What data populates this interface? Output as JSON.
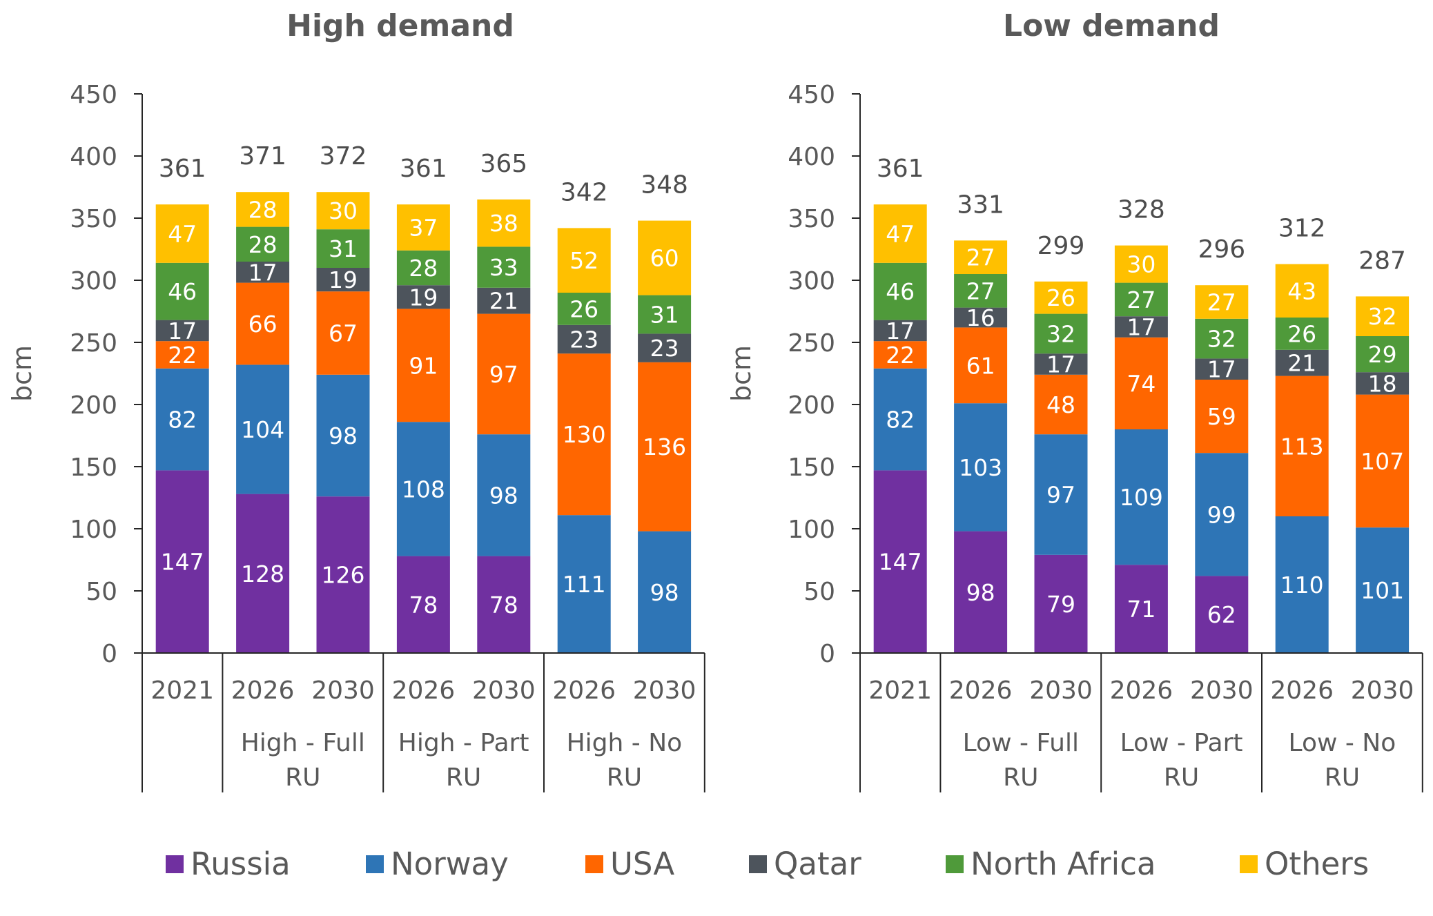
{
  "colors": {
    "Russia": "#7030a0",
    "Norway": "#2e75b6",
    "USA": "#ff6600",
    "Qatar": "#4d545c",
    "North Africa": "#4f9a3a",
    "Others": "#ffc000",
    "axis_text": "#595959",
    "label_dark": "#4d4d4d"
  },
  "legend": [
    "Russia",
    "Norway",
    "USA",
    "Qatar",
    "North Africa",
    "Others"
  ],
  "chart_data": [
    {
      "type": "bar",
      "stacked": true,
      "title": "High demand",
      "ylabel": "bcm",
      "ylim": [
        0,
        450
      ],
      "yticks": [
        "0",
        "50",
        "100",
        "150",
        "200",
        "250",
        "300",
        "350",
        "400",
        "450"
      ],
      "years": [
        "2021",
        "2026",
        "2030",
        "2026",
        "2030",
        "2026",
        "2030"
      ],
      "groups": [
        {
          "label": [],
          "span": 1
        },
        {
          "label": [
            "High - Full",
            "RU"
          ],
          "span": 2
        },
        {
          "label": [
            "High - Part",
            "RU"
          ],
          "span": 2
        },
        {
          "label": [
            "High - No",
            "RU"
          ],
          "span": 2
        }
      ],
      "totals": [
        361,
        371,
        372,
        361,
        365,
        342,
        348
      ],
      "series": [
        {
          "name": "Russia",
          "values": [
            147,
            128,
            126,
            78,
            78,
            0,
            0
          ]
        },
        {
          "name": "Norway",
          "values": [
            82,
            104,
            98,
            108,
            98,
            111,
            98
          ]
        },
        {
          "name": "USA",
          "values": [
            22,
            66,
            67,
            91,
            97,
            130,
            136
          ]
        },
        {
          "name": "Qatar",
          "values": [
            17,
            17,
            19,
            19,
            21,
            23,
            23
          ]
        },
        {
          "name": "North Africa",
          "values": [
            46,
            28,
            31,
            28,
            33,
            26,
            31
          ]
        },
        {
          "name": "Others",
          "values": [
            47,
            28,
            30,
            37,
            38,
            52,
            60
          ]
        }
      ]
    },
    {
      "type": "bar",
      "stacked": true,
      "title": "Low demand",
      "ylabel": "bcm",
      "ylim": [
        0,
        450
      ],
      "yticks": [
        "0",
        "50",
        "100",
        "150",
        "200",
        "250",
        "300",
        "350",
        "400",
        "450"
      ],
      "years": [
        "2021",
        "2026",
        "2030",
        "2026",
        "2030",
        "2026",
        "2030"
      ],
      "groups": [
        {
          "label": [],
          "span": 1
        },
        {
          "label": [
            "Low - Full",
            "RU"
          ],
          "span": 2
        },
        {
          "label": [
            "Low - Part",
            "RU"
          ],
          "span": 2
        },
        {
          "label": [
            "Low - No",
            "RU"
          ],
          "span": 2
        }
      ],
      "totals": [
        361,
        331,
        299,
        328,
        296,
        312,
        287
      ],
      "series": [
        {
          "name": "Russia",
          "values": [
            147,
            98,
            79,
            71,
            62,
            0,
            0
          ]
        },
        {
          "name": "Norway",
          "values": [
            82,
            103,
            97,
            109,
            99,
            110,
            101
          ]
        },
        {
          "name": "USA",
          "values": [
            22,
            61,
            48,
            74,
            59,
            113,
            107
          ]
        },
        {
          "name": "Qatar",
          "values": [
            17,
            16,
            17,
            17,
            17,
            21,
            18
          ]
        },
        {
          "name": "North Africa",
          "values": [
            46,
            27,
            32,
            27,
            32,
            26,
            29
          ]
        },
        {
          "name": "Others",
          "values": [
            47,
            27,
            26,
            30,
            27,
            43,
            32
          ]
        }
      ]
    }
  ]
}
